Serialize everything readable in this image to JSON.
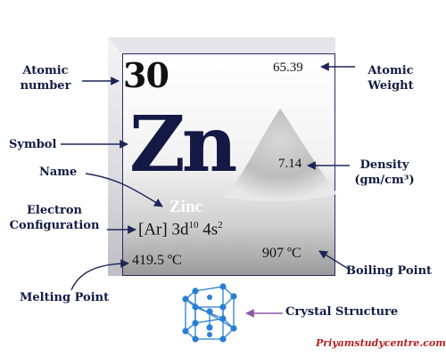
{
  "element": {
    "atomic_number": "30",
    "atomic_weight": "65.39",
    "symbol": "Zn",
    "name": "Zinc",
    "density": "7.14",
    "econfig_core": "[Ar] 3d",
    "econfig_d_exp": "10",
    "econfig_s": " 4s",
    "econfig_s_exp": "2",
    "melting_point": "419.5 ºC",
    "boiling_point": "907 ºC"
  },
  "labels": {
    "atomic_number_line1": "Atomic",
    "atomic_number_line2": "number",
    "atomic_weight_line1": "Atomic",
    "atomic_weight_line2": "Weight",
    "symbol": "Symbol",
    "name": "Name",
    "density_line1": "Density",
    "density_line2": "(gm/cm³)",
    "econfig_line1": "Electron",
    "econfig_line2": "Configuration",
    "melting_point": "Melting Point",
    "boiling_point": "Boiling Point",
    "crystal_structure": "Crystal Structure"
  },
  "watermark": "Priyamstudycentre.com",
  "colors": {
    "label_text": "#111c44",
    "arrow": "#1c2458",
    "crystal_node": "#2a7fd4",
    "crystal_arrow": "#8a5aa8",
    "watermark": "#b52020"
  }
}
